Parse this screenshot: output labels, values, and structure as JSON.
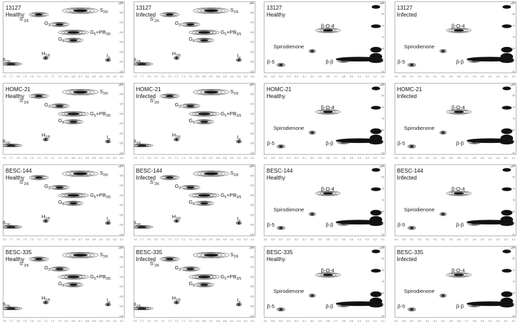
{
  "chart_data": {
    "type": "scatter",
    "description_rows": [
      "13127",
      "HOMC-21",
      "BESC-144",
      "BESC-335"
    ],
    "axis_unit": "ppm",
    "aromatic_x_ticks": [
      "7.8",
      "7.7",
      "7.6",
      "7.5",
      "7.4",
      "7.3",
      "7.2",
      "7.1",
      "7.0",
      "6.9",
      "6.8",
      "6.7",
      "6.6",
      "6.5",
      "6.4",
      "6.3",
      "6.2",
      "6.1"
    ],
    "aromatic_y_ticks": [
      "100",
      "105",
      "110",
      "115",
      "120",
      "125",
      "130",
      "135"
    ],
    "aliphatic_x_ticks": [
      "5.6",
      "5.5",
      "5.4",
      "5.3",
      "5.2",
      "5.1",
      "5.0",
      "4.9",
      "4.8",
      "4.7",
      "4.6",
      "4.5",
      "4.4",
      "4.3",
      "4.2",
      "4.1"
    ],
    "aliphatic_y_ticks": [
      "60",
      "65",
      "70",
      "75",
      "80",
      "85",
      "90"
    ],
    "aromatic_cross_peaks": [
      {
        "id": "S26",
        "label_main": "S",
        "label_sub": "2/6",
        "x": 6.7,
        "y": 104
      },
      {
        "id": "S'26",
        "label_main": "S'",
        "label_sub": "2/6",
        "x": 7.3,
        "y": 106
      },
      {
        "id": "G2",
        "label_main": "G",
        "label_sub": "2",
        "x": 7.0,
        "y": 111
      },
      {
        "id": "G5PB35",
        "label_main": "G",
        "label_sub": "5",
        "label_extra": "+PB",
        "label_extra_sub": "3/5",
        "x": 6.8,
        "y": 115
      },
      {
        "id": "G6",
        "label_main": "G",
        "label_sub": "6",
        "x": 6.8,
        "y": 119
      },
      {
        "id": "H26",
        "label_main": "H",
        "label_sub": "2/6",
        "x": 7.2,
        "y": 128
      },
      {
        "id": "Ia",
        "label_main": "I",
        "label_sub": "α",
        "x": 6.3,
        "y": 129
      },
      {
        "id": "PB26",
        "label_main": "PB",
        "label_sub": "2/6",
        "x": 7.7,
        "y": 131
      }
    ],
    "aliphatic_cross_peaks": [
      {
        "id": "BO4",
        "label": "β-O-4",
        "x": 4.8,
        "y": 72
      },
      {
        "id": "SPD",
        "label": "Spirodienone",
        "x": 5.0,
        "y": 81
      },
      {
        "id": "B5",
        "label": "β-5",
        "x": 5.4,
        "y": 87
      },
      {
        "id": "BB",
        "label": "β-β",
        "x": 4.6,
        "y": 85
      }
    ],
    "panels": [
      {
        "sample": "13127",
        "condition": "Healthy",
        "region": "aromatic"
      },
      {
        "sample": "13127",
        "condition": "Infected",
        "region": "aromatic"
      },
      {
        "sample": "13127",
        "condition": "Healthy",
        "region": "aliphatic"
      },
      {
        "sample": "13127",
        "condition": "Infected",
        "region": "aliphatic"
      },
      {
        "sample": "HOMC-21",
        "condition": "Healthy",
        "region": "aromatic"
      },
      {
        "sample": "HOMC-21",
        "condition": "Infected",
        "region": "aromatic"
      },
      {
        "sample": "HOMC-21",
        "condition": "Healthy",
        "region": "aliphatic"
      },
      {
        "sample": "HOMC-21",
        "condition": "Infected",
        "region": "aliphatic"
      },
      {
        "sample": "BESC-144",
        "condition": "Healthy",
        "region": "aromatic"
      },
      {
        "sample": "BESC-144",
        "condition": "Infected",
        "region": "aromatic"
      },
      {
        "sample": "BESC-144",
        "condition": "Healthy",
        "region": "aliphatic"
      },
      {
        "sample": "BESC-144",
        "condition": "Infected",
        "region": "aliphatic"
      },
      {
        "sample": "BESC-335",
        "condition": "Healthy",
        "region": "aromatic"
      },
      {
        "sample": "BESC-335",
        "condition": "Infected",
        "region": "aromatic"
      },
      {
        "sample": "BESC-335",
        "condition": "Healthy",
        "region": "aliphatic"
      },
      {
        "sample": "BESC-335",
        "condition": "Infected",
        "region": "aliphatic"
      }
    ]
  }
}
